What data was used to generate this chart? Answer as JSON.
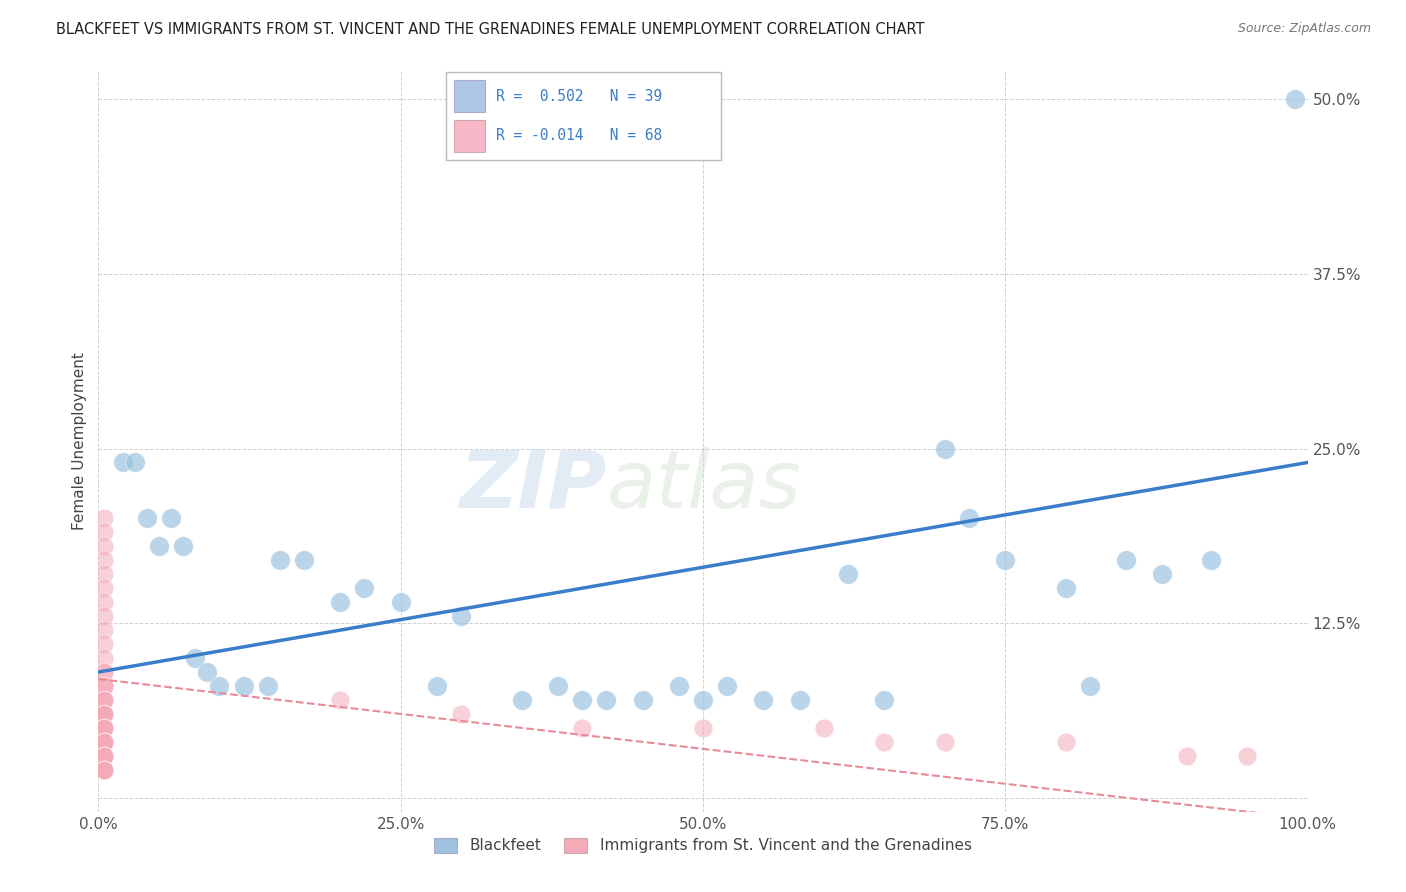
{
  "title": "BLACKFEET VS IMMIGRANTS FROM ST. VINCENT AND THE GRENADINES FEMALE UNEMPLOYMENT CORRELATION CHART",
  "source": "Source: ZipAtlas.com",
  "ylabel": "Female Unemployment",
  "xlim": [
    0.0,
    1.0
  ],
  "ylim": [
    -0.01,
    0.52
  ],
  "xticks": [
    0.0,
    0.25,
    0.5,
    0.75,
    1.0
  ],
  "xtick_labels": [
    "0.0%",
    "25.0%",
    "50.0%",
    "75.0%",
    "100.0%"
  ],
  "yticks": [
    0.0,
    0.125,
    0.25,
    0.375,
    0.5
  ],
  "ytick_labels": [
    "",
    "12.5%",
    "25.0%",
    "37.5%",
    "50.0%"
  ],
  "watermark_zip": "ZIP",
  "watermark_atlas": "atlas",
  "legend_label1": "R =  0.502   N = 39",
  "legend_label2": "R = -0.014   N = 68",
  "legend_color1": "#aec6e8",
  "legend_color2": "#f9b8c8",
  "blue_color": "#9dc3e0",
  "pink_color": "#f4aab9",
  "blue_line_color": "#3a7dc9",
  "pink_line_color": "#e88a9a",
  "blue_line_y0": 0.09,
  "blue_line_y1": 0.24,
  "pink_line_y0": 0.085,
  "pink_line_y1": -0.015,
  "blackfeet_x": [
    0.02,
    0.03,
    0.04,
    0.05,
    0.06,
    0.07,
    0.08,
    0.09,
    0.1,
    0.12,
    0.14,
    0.15,
    0.17,
    0.2,
    0.22,
    0.25,
    0.28,
    0.3,
    0.35,
    0.38,
    0.4,
    0.42,
    0.45,
    0.48,
    0.5,
    0.52,
    0.55,
    0.58,
    0.62,
    0.65,
    0.7,
    0.72,
    0.75,
    0.8,
    0.82,
    0.85,
    0.88,
    0.92,
    0.99
  ],
  "blackfeet_y": [
    0.24,
    0.24,
    0.2,
    0.18,
    0.2,
    0.18,
    0.1,
    0.09,
    0.08,
    0.08,
    0.08,
    0.17,
    0.17,
    0.14,
    0.15,
    0.14,
    0.08,
    0.13,
    0.07,
    0.08,
    0.07,
    0.07,
    0.07,
    0.08,
    0.07,
    0.08,
    0.07,
    0.07,
    0.16,
    0.07,
    0.25,
    0.2,
    0.17,
    0.15,
    0.08,
    0.17,
    0.16,
    0.17,
    0.5
  ],
  "svg_x": [
    0.005,
    0.005,
    0.005,
    0.005,
    0.005,
    0.005,
    0.005,
    0.005,
    0.005,
    0.005,
    0.005,
    0.005,
    0.005,
    0.005,
    0.005,
    0.005,
    0.005,
    0.005,
    0.005,
    0.005,
    0.005,
    0.005,
    0.005,
    0.005,
    0.005,
    0.005,
    0.005,
    0.005,
    0.005,
    0.005,
    0.005,
    0.005,
    0.005,
    0.005,
    0.005,
    0.005,
    0.005,
    0.005,
    0.005,
    0.005,
    0.005,
    0.005,
    0.005,
    0.005,
    0.005,
    0.005,
    0.005,
    0.005,
    0.005,
    0.005,
    0.005,
    0.005,
    0.005,
    0.005,
    0.005,
    0.005,
    0.005,
    0.005,
    0.2,
    0.3,
    0.4,
    0.5,
    0.6,
    0.65,
    0.7,
    0.8,
    0.9,
    0.95
  ],
  "svg_y": [
    0.2,
    0.19,
    0.18,
    0.17,
    0.16,
    0.15,
    0.14,
    0.13,
    0.12,
    0.11,
    0.1,
    0.09,
    0.09,
    0.08,
    0.08,
    0.08,
    0.07,
    0.07,
    0.07,
    0.07,
    0.06,
    0.06,
    0.06,
    0.06,
    0.06,
    0.06,
    0.05,
    0.05,
    0.05,
    0.05,
    0.05,
    0.05,
    0.04,
    0.04,
    0.04,
    0.04,
    0.04,
    0.04,
    0.04,
    0.04,
    0.04,
    0.03,
    0.03,
    0.03,
    0.03,
    0.03,
    0.03,
    0.03,
    0.03,
    0.02,
    0.02,
    0.02,
    0.02,
    0.02,
    0.02,
    0.02,
    0.02,
    0.02,
    0.07,
    0.06,
    0.05,
    0.05,
    0.05,
    0.04,
    0.04,
    0.04,
    0.03,
    0.03
  ]
}
